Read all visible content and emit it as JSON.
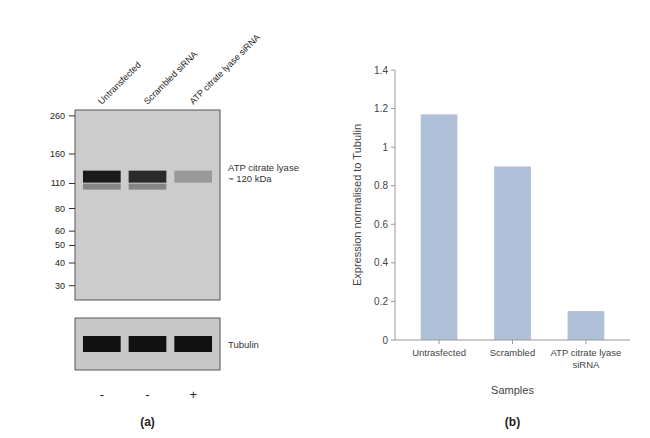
{
  "chart_data": [
    {
      "type": "western_blot",
      "title": "(a)",
      "categories": [
        "Untransfected",
        "Scrambled siRNA",
        "ATP citrate lyase siRNA"
      ],
      "values": [
        120,
        120,
        120
      ],
      "colors": [
        "#1a1a1a",
        "#2a2a2a",
        "#999999"
      ],
      "log": "y",
      "ylim": [
        25,
        280
      ],
      "yticks": [
        260,
        160,
        110,
        80,
        60,
        50,
        40,
        30
      ],
      "annotations": [
        "ATP citrate lyase\n~ 120 kDa",
        "Tubulin"
      ],
      "treatment": [
        "-",
        "-",
        "+"
      ]
    },
    {
      "type": "bar",
      "title": "(b)",
      "categories": [
        "Untrasfected",
        "Scrambled",
        "ATP citrate lyase\nsiRNA"
      ],
      "values": [
        1.17,
        0.9,
        0.15
      ],
      "color": "#b0c0d8",
      "ylabel": "Expression normalised to Tubulin",
      "xlabel": "Samples",
      "ylim": [
        0,
        1.4
      ],
      "yticks": [
        0,
        0.2,
        0.4,
        0.6,
        0.8,
        1,
        1.2,
        1.4
      ],
      "grid": false
    }
  ]
}
